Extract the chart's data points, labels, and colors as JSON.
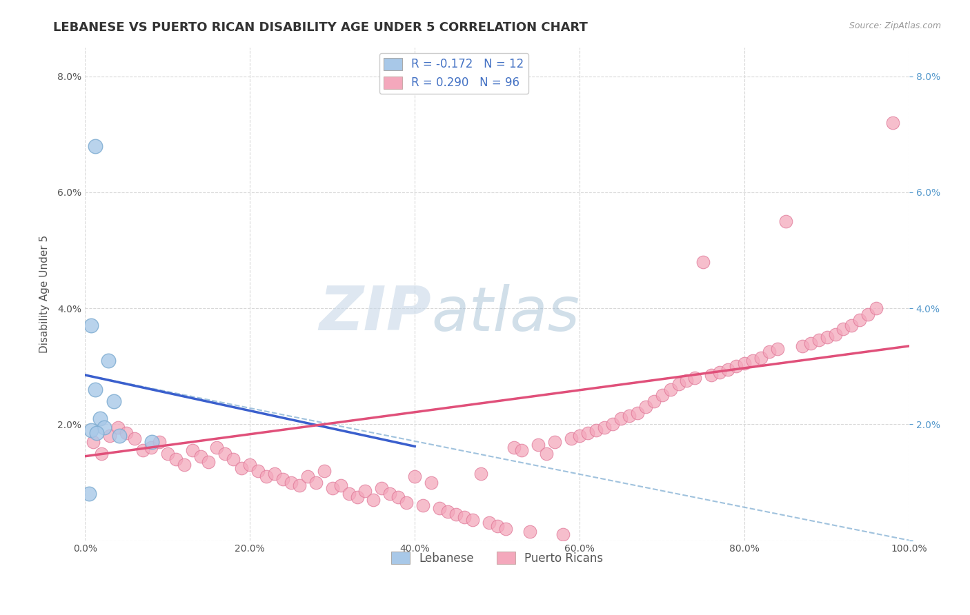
{
  "title": "LEBANESE VS PUERTO RICAN DISABILITY AGE UNDER 5 CORRELATION CHART",
  "source_text": "Source: ZipAtlas.com",
  "ylabel": "Disability Age Under 5",
  "watermark_zip": "ZIP",
  "watermark_atlas": "atlas",
  "r_leb": "-0.172",
  "n_leb": "12",
  "r_pr": "0.290",
  "n_pr": "96",
  "lebanese_color": "#a8c8e8",
  "lebanese_edge": "#7aaad0",
  "puerto_rican_color": "#f4a8bc",
  "puerto_rican_edge": "#e07898",
  "lebanese_line_color": "#3a5fcd",
  "puerto_rican_line_color": "#e0507a",
  "dashed_line_color": "#90b8d8",
  "bg_color": "#ffffff",
  "grid_color": "#d8d8d8",
  "xlim": [
    0,
    100
  ],
  "ylim": [
    0,
    8.5
  ],
  "xticks": [
    0,
    20,
    40,
    60,
    80,
    100
  ],
  "yticks": [
    0,
    2,
    4,
    6,
    8
  ],
  "xtick_labels": [
    "0.0%",
    "20.0%",
    "40.0%",
    "60.0%",
    "80.0%",
    "100.0%"
  ],
  "ytick_labels": [
    "",
    "2.0%",
    "4.0%",
    "6.0%",
    "8.0%"
  ],
  "title_fontsize": 13,
  "lebanese_x": [
    1.2,
    0.7,
    2.8,
    1.2,
    3.5,
    1.8,
    2.3,
    0.7,
    1.4,
    4.2,
    8.1,
    0.5
  ],
  "lebanese_y": [
    6.8,
    3.7,
    3.1,
    2.6,
    2.4,
    2.1,
    1.95,
    1.9,
    1.85,
    1.8,
    1.7,
    0.8
  ],
  "leb_line_x0": 0,
  "leb_line_x1": 40,
  "leb_line_y0": 2.85,
  "leb_line_y1": 1.62,
  "leb_dash_x0": 0,
  "leb_dash_x1": 100,
  "leb_dash_y0": 2.85,
  "leb_dash_y1": 0.0,
  "pr_line_x0": 0,
  "pr_line_x1": 100,
  "pr_line_y0": 1.45,
  "pr_line_y1": 3.35,
  "pr_x": [
    1,
    2,
    3,
    4,
    5,
    6,
    7,
    8,
    9,
    10,
    11,
    12,
    13,
    14,
    15,
    16,
    17,
    18,
    19,
    20,
    21,
    22,
    23,
    24,
    25,
    26,
    27,
    28,
    29,
    30,
    31,
    32,
    33,
    34,
    35,
    36,
    37,
    38,
    39,
    40,
    41,
    42,
    43,
    44,
    45,
    46,
    47,
    48,
    49,
    50,
    51,
    52,
    53,
    54,
    55,
    56,
    57,
    58,
    59,
    60,
    61,
    62,
    63,
    64,
    65,
    66,
    67,
    68,
    69,
    70,
    71,
    72,
    73,
    74,
    75,
    76,
    77,
    78,
    79,
    80,
    81,
    82,
    83,
    84,
    85,
    87,
    88,
    89,
    90,
    91,
    92,
    93,
    94,
    95,
    96,
    98
  ],
  "pr_y": [
    1.7,
    1.5,
    1.8,
    1.95,
    1.85,
    1.75,
    1.55,
    1.6,
    1.7,
    1.5,
    1.4,
    1.3,
    1.55,
    1.45,
    1.35,
    1.6,
    1.5,
    1.4,
    1.25,
    1.3,
    1.2,
    1.1,
    1.15,
    1.05,
    1.0,
    0.95,
    1.1,
    1.0,
    1.2,
    0.9,
    0.95,
    0.8,
    0.75,
    0.85,
    0.7,
    0.9,
    0.8,
    0.75,
    0.65,
    1.1,
    0.6,
    1.0,
    0.55,
    0.5,
    0.45,
    0.4,
    0.35,
    1.15,
    0.3,
    0.25,
    0.2,
    1.6,
    1.55,
    0.15,
    1.65,
    1.5,
    1.7,
    0.1,
    1.75,
    1.8,
    1.85,
    1.9,
    1.95,
    2.0,
    2.1,
    2.15,
    2.2,
    2.3,
    2.4,
    2.5,
    2.6,
    2.7,
    2.75,
    2.8,
    4.8,
    2.85,
    2.9,
    2.95,
    3.0,
    3.05,
    3.1,
    3.15,
    3.25,
    3.3,
    5.5,
    3.35,
    3.4,
    3.45,
    3.5,
    3.55,
    3.65,
    3.7,
    3.8,
    3.9,
    4.0,
    7.2
  ]
}
